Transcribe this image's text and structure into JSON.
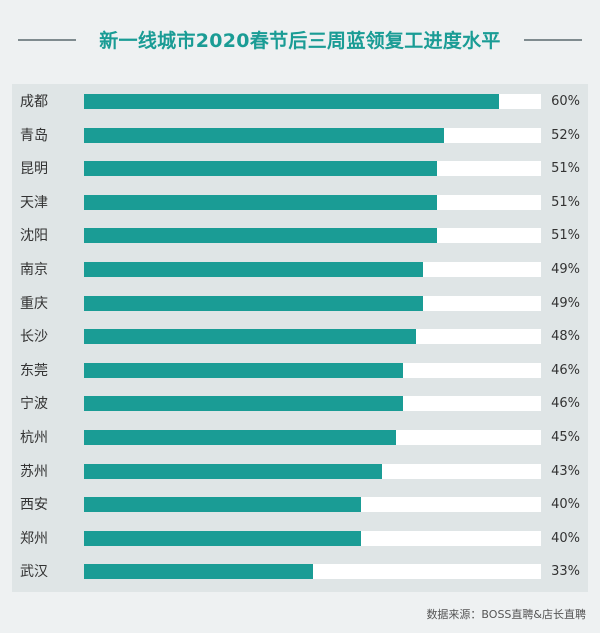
{
  "chart_data": {
    "type": "bar",
    "orientation": "horizontal",
    "title": "新一线城市2020春节后三周蓝领复工进度水平",
    "categories": [
      "成都",
      "青岛",
      "昆明",
      "天津",
      "沈阳",
      "南京",
      "重庆",
      "长沙",
      "东莞",
      "宁波",
      "杭州",
      "苏州",
      "西安",
      "郑州",
      "武汉"
    ],
    "values": [
      60,
      52,
      51,
      51,
      51,
      49,
      49,
      48,
      46,
      46,
      45,
      43,
      40,
      40,
      33
    ],
    "value_labels": [
      "60%",
      "52%",
      "51%",
      "51%",
      "51%",
      "49%",
      "49%",
      "48%",
      "46%",
      "46%",
      "45%",
      "43%",
      "40%",
      "40%",
      "33%"
    ],
    "xlim": [
      0,
      66
    ],
    "unit": "%",
    "bar_color": "#1a9c95",
    "track_color": "#ffffff",
    "grid": false
  },
  "source": "数据来源：BOSS直聘&店长直聘"
}
